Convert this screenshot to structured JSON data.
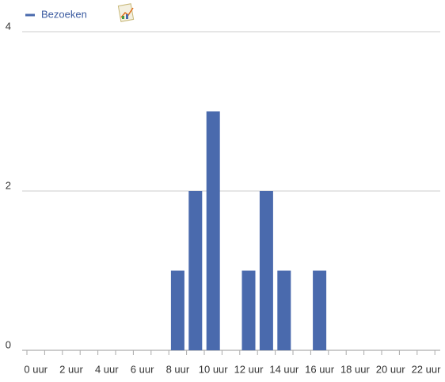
{
  "chart_data": {
    "type": "bar",
    "categories": [
      "0 uur",
      null,
      "2 uur",
      null,
      "4 uur",
      null,
      "6 uur",
      null,
      "8 uur",
      null,
      "10 uur",
      null,
      "12 uur",
      null,
      "14 uur",
      null,
      "16 uur",
      null,
      "18 uur",
      null,
      "20 uur",
      null,
      "22 uur",
      null
    ],
    "series": [
      {
        "name": "Bezoeken",
        "color": "#4a6aad",
        "values": [
          0,
          0,
          0,
          0,
          0,
          0,
          0,
          0,
          1,
          2,
          3,
          0,
          1,
          2,
          1,
          0,
          1,
          0,
          0,
          0,
          0,
          0,
          0,
          0
        ]
      }
    ],
    "ylim": [
      0,
      4
    ],
    "yticks": [
      0,
      2,
      4
    ],
    "grid": true
  }
}
